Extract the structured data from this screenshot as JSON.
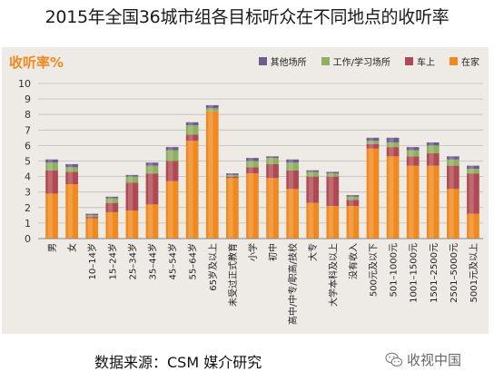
{
  "title": "2015年全国36城市组各目标听众在不同地点的收听率",
  "footer": "数据来源：CSM 媒介研究",
  "brand": {
    "name": "收视中国",
    "icon": "wechat-icon"
  },
  "colors": {
    "other": "#6f5b8e",
    "work": "#8fb060",
    "car": "#b04a52",
    "home": "#f0891f",
    "panel": "#eeeae6",
    "grid": "#bdbdbd"
  },
  "chart_data": {
    "type": "bar",
    "stacked": true,
    "title": "",
    "ylabel": "收听率%",
    "xlabel": "",
    "ylim": [
      0,
      10
    ],
    "yticks": [
      0,
      1,
      2,
      3,
      4,
      5,
      6,
      7,
      8,
      9,
      10
    ],
    "grid": true,
    "legend_position": "top-right",
    "categories": [
      "男",
      "女",
      "10–14岁",
      "15–24岁",
      "25–34岁",
      "35–44岁",
      "45–54岁",
      "55–64岁",
      "65岁及以上",
      "未受过正式教育",
      "小学",
      "初中",
      "高中/中专/职高/技校",
      "大专",
      "大学本科及以上",
      "没有收入",
      "500元及以下",
      "501–1000元",
      "1001–1500元",
      "1501–2500元",
      "2501–5000元",
      "5001元及以上"
    ],
    "series": [
      {
        "name": "在家",
        "color": "#f0891f",
        "values": [
          2.9,
          3.5,
          1.3,
          1.7,
          1.8,
          2.2,
          3.7,
          6.3,
          8.2,
          3.9,
          4.2,
          3.9,
          3.2,
          2.3,
          2.1,
          2.1,
          5.8,
          5.3,
          4.7,
          4.7,
          3.2,
          1.6
        ]
      },
      {
        "name": "车上",
        "color": "#b04a52",
        "values": [
          1.5,
          0.8,
          0.1,
          0.6,
          1.8,
          2.0,
          1.3,
          0.4,
          0.0,
          0.1,
          0.4,
          0.9,
          1.2,
          1.7,
          1.9,
          0.4,
          0.3,
          0.6,
          0.6,
          0.8,
          1.5,
          2.6
        ]
      },
      {
        "name": "工作/学习场所",
        "color": "#8fb060",
        "values": [
          0.5,
          0.3,
          0.1,
          0.3,
          0.4,
          0.5,
          0.7,
          0.6,
          0.2,
          0.1,
          0.4,
          0.4,
          0.5,
          0.3,
          0.2,
          0.2,
          0.2,
          0.3,
          0.4,
          0.5,
          0.4,
          0.3
        ]
      },
      {
        "name": "其他场所",
        "color": "#6f5b8e",
        "values": [
          0.2,
          0.2,
          0.1,
          0.1,
          0.1,
          0.2,
          0.2,
          0.2,
          0.2,
          0.1,
          0.2,
          0.1,
          0.2,
          0.1,
          0.1,
          0.1,
          0.2,
          0.3,
          0.2,
          0.2,
          0.2,
          0.2
        ]
      }
    ],
    "legend_order": [
      "其他场所",
      "工作/学习场所",
      "车上",
      "在家"
    ]
  }
}
